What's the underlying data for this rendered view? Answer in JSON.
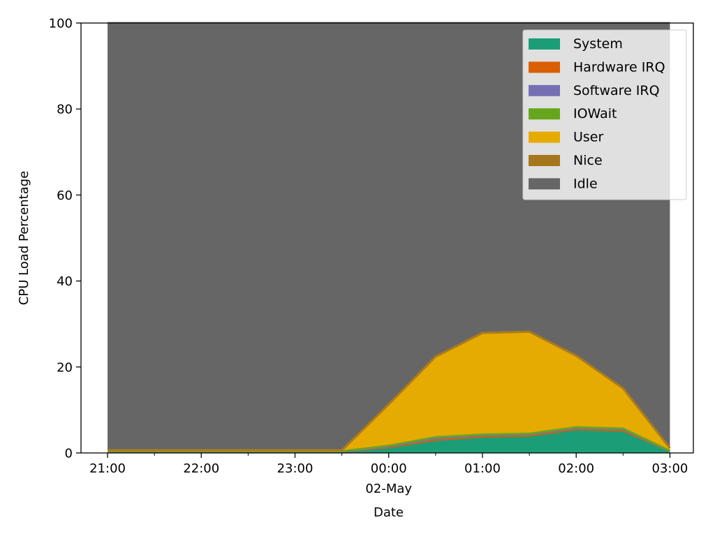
{
  "chart_data": {
    "type": "area",
    "stacked": true,
    "xlabel": "Date",
    "ylabel": "CPU Load Percentage",
    "ylim": [
      0,
      100
    ],
    "xlim": [
      "2023-05-01 20:43",
      "2023-05-02 03:15"
    ],
    "x": [
      "2023-05-01 21:00",
      "2023-05-01 21:30",
      "2023-05-01 22:00",
      "2023-05-01 22:30",
      "2023-05-01 23:00",
      "2023-05-01 23:30",
      "2023-05-02 00:00",
      "2023-05-02 00:30",
      "2023-05-02 01:00",
      "2023-05-02 01:30",
      "2023-05-02 02:00",
      "2023-05-02 02:30",
      "2023-05-02 03:00"
    ],
    "x_tick_labels": [
      "21:00",
      "22:00",
      "23:00",
      "00:00",
      "01:00",
      "02:00",
      "03:00"
    ],
    "x_tick_sublabel": {
      "tick": "00:00",
      "text": "02-May"
    },
    "y_ticks": [
      0,
      20,
      40,
      60,
      80,
      100
    ],
    "legend_position": "upper right",
    "series": [
      {
        "name": "System",
        "color": "#1b9e77",
        "values": [
          0.3,
          0.3,
          0.3,
          0.3,
          0.3,
          0.3,
          1.3,
          3.0,
          3.8,
          4.0,
          5.5,
          5.2,
          0.4
        ]
      },
      {
        "name": "Hardware IRQ",
        "color": "#d95f02",
        "values": [
          0,
          0,
          0,
          0,
          0,
          0,
          0,
          0,
          0,
          0,
          0,
          0,
          0
        ]
      },
      {
        "name": "Software IRQ",
        "color": "#7570b3",
        "values": [
          0,
          0,
          0,
          0,
          0,
          0,
          0.2,
          0.4,
          0.3,
          0.3,
          0.3,
          0.3,
          0
        ]
      },
      {
        "name": "IOWait",
        "color": "#66a61e",
        "values": [
          0.1,
          0.1,
          0.1,
          0.1,
          0.1,
          0.1,
          0.2,
          0.3,
          0.2,
          0.2,
          0.2,
          0.2,
          0.1
        ]
      },
      {
        "name": "User",
        "color": "#e6ab02",
        "values": [
          0.2,
          0.2,
          0.2,
          0.2,
          0.2,
          0.2,
          9.6,
          18.7,
          23.6,
          23.7,
          16.6,
          9.3,
          0.6
        ]
      },
      {
        "name": "Nice",
        "color": "#a6761d",
        "values": [
          0,
          0,
          0,
          0,
          0,
          0,
          0,
          0,
          0,
          0,
          0,
          0,
          0
        ]
      },
      {
        "name": "Idle",
        "color": "#666666",
        "values": [
          99.4,
          99.4,
          99.4,
          99.4,
          99.4,
          99.4,
          88.7,
          77.6,
          72.1,
          71.8,
          77.4,
          85.0,
          98.9
        ]
      }
    ]
  }
}
